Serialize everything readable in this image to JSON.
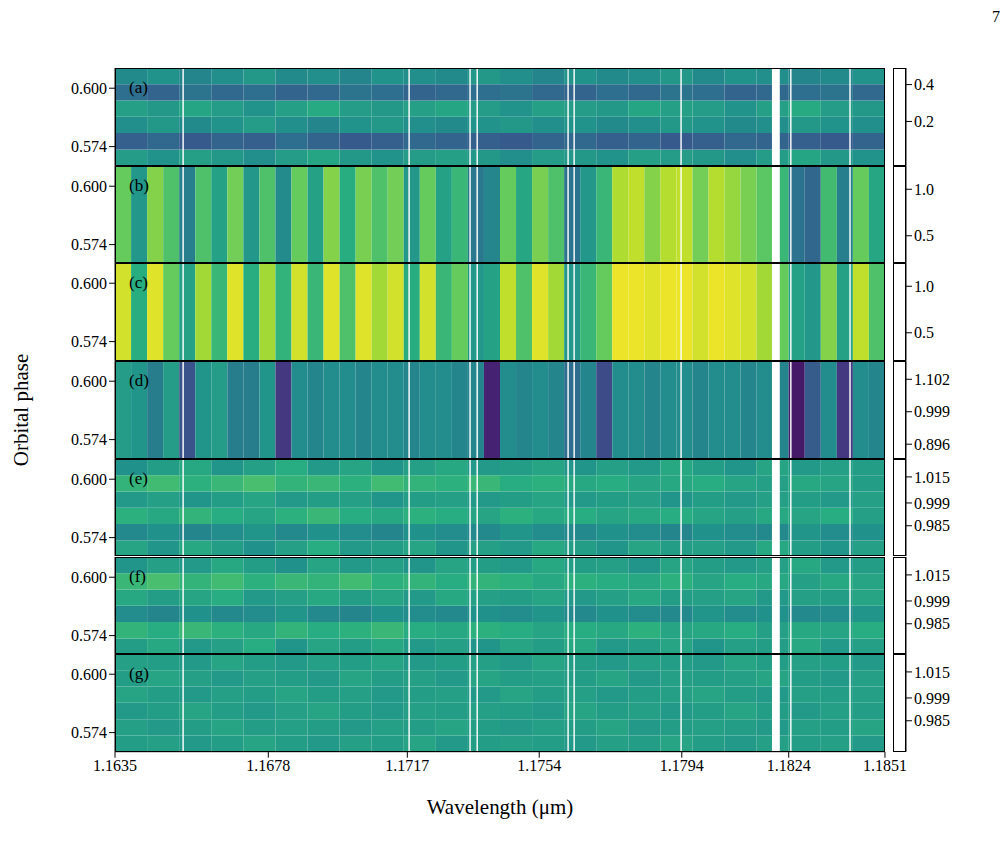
{
  "page_number": "7",
  "chart_data": {
    "type": "heatmap",
    "xlabel": "Wavelength (μm)",
    "ylabel": "Orbital phase",
    "xlim": [
      1.1635,
      1.1851
    ],
    "xticks": [
      1.1635,
      1.1678,
      1.1717,
      1.1754,
      1.1794,
      1.1824,
      1.1851
    ],
    "ylim": [
      0.5655,
      0.609
    ],
    "yticks": [
      0.574,
      {
        "value": 0.6,
        "label": "0.600"
      }
    ],
    "masked": [
      [
        1.16539,
        1.16543
      ],
      [
        1.17173,
        1.17177
      ],
      [
        1.17344,
        1.17348
      ],
      [
        1.17364,
        1.17368
      ],
      [
        1.17619,
        1.17623
      ],
      [
        1.17636,
        1.1764
      ],
      [
        1.17936,
        1.1794
      ],
      [
        1.18193,
        1.18215
      ],
      [
        1.18244,
        1.18248
      ],
      [
        1.1841,
        1.18414
      ]
    ],
    "panels": [
      {
        "label": "(a)",
        "colorbar_range": [
          -0.04,
          0.49
        ],
        "colorbar_ticks": [
          0.2,
          0.4
        ],
        "cells": [
          [
            0.25,
            0.23,
            0.26,
            0.24,
            0.22,
            0.25,
            0.27,
            0.24,
            0.23,
            0.25,
            0.26,
            0.24,
            0.22,
            0.25,
            0.24,
            0.23,
            0.26,
            0.25,
            0.24,
            0.22,
            0.25,
            0.27,
            0.24,
            0.23
          ],
          [
            0.12,
            0.14,
            0.11,
            0.13,
            0.12,
            0.15,
            0.13,
            0.11,
            0.12,
            0.14,
            0.13,
            0.12,
            0.11,
            0.13,
            0.14,
            0.12,
            0.13,
            0.11,
            0.12,
            0.14,
            0.13,
            0.12,
            0.11,
            0.13
          ],
          [
            0.22,
            0.24,
            0.21,
            0.23,
            0.25,
            0.22,
            0.2,
            0.23,
            0.24,
            0.22,
            0.21,
            0.23,
            0.24,
            0.22,
            0.23,
            0.21,
            0.22,
            0.24,
            0.23,
            0.21,
            0.22,
            0.24,
            0.23,
            0.22
          ],
          [
            0.26,
            0.24,
            0.27,
            0.25,
            0.23,
            0.26,
            0.28,
            0.25,
            0.24,
            0.26,
            0.27,
            0.25,
            0.23,
            0.26,
            0.25,
            0.24,
            0.27,
            0.26,
            0.25,
            0.23,
            0.26,
            0.28,
            0.25,
            0.24
          ],
          [
            0.15,
            0.13,
            0.16,
            0.14,
            0.15,
            0.13,
            0.14,
            0.16,
            0.15,
            0.13,
            0.14,
            0.15,
            0.16,
            0.14,
            0.13,
            0.15,
            0.14,
            0.16,
            0.15,
            0.13,
            0.14,
            0.15,
            0.16,
            0.14
          ],
          [
            0.21,
            0.23,
            0.2,
            0.22,
            0.24,
            0.21,
            0.22,
            0.2,
            0.23,
            0.22,
            0.21,
            0.24,
            0.22,
            0.2,
            0.23,
            0.21,
            0.22,
            0.24,
            0.21,
            0.23,
            0.22,
            0.2,
            0.21,
            0.23
          ]
        ]
      },
      {
        "label": "(b)",
        "colorbar_range": [
          0.2,
          1.25
        ],
        "colorbar_ticks": [
          0.5,
          {
            "value": 1,
            "label": "1.0"
          }
        ],
        "cells": [
          [
            1.0,
            0.75,
            1.05,
            0.95,
            0.65,
            0.95,
            0.8,
            1.02,
            0.75,
            0.95,
            0.7,
            1.0,
            0.8,
            1.05,
            0.85,
            1.03,
            0.95,
            1.02,
            0.75,
            1.0,
            0.8,
            0.9,
            0.62,
            0.68,
            1.0,
            0.82,
            1.03,
            0.95,
            0.6,
            0.75,
            0.9,
            1.12,
            1.15,
            1.05,
            1.13,
            1.15,
            1.02,
            1.13,
            1.08,
            1.03,
            0.98,
            0.9,
            0.6,
            0.55,
            0.92,
            0.65,
            1.0,
            0.82
          ]
        ]
      },
      {
        "label": "(c)",
        "colorbar_range": [
          0.2,
          1.25
        ],
        "colorbar_ticks": [
          0.5,
          {
            "value": 1,
            "label": "1.0"
          }
        ],
        "cells": [
          [
            1.18,
            0.85,
            1.2,
            1.0,
            0.8,
            1.1,
            0.9,
            1.2,
            0.85,
            1.1,
            0.88,
            1.18,
            0.9,
            1.2,
            0.95,
            1.2,
            1.1,
            1.18,
            0.85,
            1.18,
            0.9,
            1.0,
            0.75,
            0.8,
            1.15,
            0.95,
            1.2,
            1.1,
            0.75,
            0.9,
            1.0,
            1.22,
            1.22,
            1.2,
            1.22,
            1.22,
            1.18,
            1.22,
            1.2,
            1.18,
            1.1,
            1.0,
            0.8,
            0.75,
            1.05,
            0.8,
            1.15,
            0.95
          ]
        ]
      },
      {
        "label": "(d)",
        "colorbar_range": [
          0.85,
          1.16
        ],
        "colorbar_ticks": [
          0.896,
          0.999,
          1.102
        ],
        "cells": [
          [
            1.02,
            1.01,
            0.98,
            1.02,
            0.93,
            1.01,
            1.02,
            0.98,
            0.98,
            1.01,
            0.9,
            1.0,
            0.99,
            1.0,
            1.0,
            0.99,
            1.0,
            1.0,
            0.99,
            1.0,
            1.0,
            0.99,
            0.99,
            0.88,
            1.0,
            0.99,
            1.0,
            0.99,
            0.96,
            0.99,
            0.92,
            1.0,
            1.0,
            0.99,
            1.0,
            1.0,
            0.99,
            1.0,
            1.0,
            0.99,
            1.0,
            0.99,
            0.87,
            0.94,
            1.0,
            0.9,
            1.0,
            0.99
          ]
        ]
      },
      {
        "label": "(e)",
        "colorbar_range": [
          0.966,
          1.026
        ],
        "colorbar_ticks": [
          0.985,
          0.999,
          1.015
        ],
        "cells": [
          [
            1.001,
            0.997,
            1.002,
            0.999,
            0.996,
            1.0,
            1.003,
            0.998,
            0.999,
            1.001,
            0.997,
            1.0,
            0.998,
            1.002,
            0.999,
            0.997,
            1.001,
            0.999,
            1.0,
            0.998,
            1.002,
            0.999,
            0.997,
            1.0
          ],
          [
            0.994,
            0.996,
            0.993,
            0.995,
            0.997,
            0.994,
            0.996,
            0.995,
            0.993,
            0.996,
            0.995,
            0.994,
            0.997,
            0.995,
            0.994,
            0.996,
            0.995,
            0.993,
            0.996,
            0.995,
            0.994,
            0.997,
            0.995,
            0.996
          ],
          [
            1.004,
            1.002,
            1.005,
            1.003,
            1.001,
            1.004,
            1.006,
            1.003,
            1.002,
            1.004,
            1.003,
            1.001,
            1.004,
            1.002,
            1.003,
            1.001,
            1.002,
            1.003,
            1.001,
            1.0,
            1.002,
            1.001,
            1.003,
            1.0
          ],
          [
            0.998,
            1.0,
            0.997,
            0.999,
            1.001,
            0.998,
            0.999,
            1.0,
            0.997,
            0.999,
            1.0,
            0.998,
            0.999,
            1.001,
            0.998,
            0.999,
            1.0,
            0.997,
            0.999,
            0.998,
            1.0,
            0.999,
            0.998,
            1.0
          ],
          [
            1.005,
            1.007,
            1.004,
            1.006,
            1.008,
            1.005,
            1.006,
            1.004,
            1.007,
            1.005,
            1.004,
            1.006,
            1.003,
            1.004,
            1.002,
            1.003,
            1.001,
            1.002,
            1.003,
            1.001,
            1.0,
            1.002,
            1.001,
            0.999
          ],
          [
            0.996,
            0.999,
            1.002,
            0.997,
            1.0,
            1.003,
            0.998,
            1.001,
            0.997,
            1.0,
            1.002,
            0.998,
            0.999,
            1.001,
            0.997,
            1.0,
            0.998,
            1.002,
            0.999,
            0.997,
            1.001,
            0.998,
            1.0,
            0.999
          ]
        ]
      },
      {
        "label": "(f)",
        "colorbar_range": [
          0.966,
          1.026
        ],
        "colorbar_ticks": [
          0.985,
          0.999,
          1.015
        ],
        "cells": [
          [
            0.999,
            1.002,
            0.998,
            1.0,
            1.003,
            0.997,
            1.001,
            0.999,
            1.002,
            0.998,
            1.0,
            0.997,
            1.001,
            0.999,
            1.002,
            0.998,
            0.999,
            1.001,
            0.997,
            1.0,
            0.999,
            1.002,
            0.998,
            1.0
          ],
          [
            1.005,
            1.003,
            1.006,
            1.004,
            1.002,
            1.005,
            1.003,
            1.004,
            1.006,
            1.003,
            1.002,
            1.004,
            1.003,
            1.001,
            1.003,
            1.002,
            1.004,
            1.001,
            1.002,
            1.003,
            1.0,
            1.002,
            1.001,
            1.003
          ],
          [
            0.995,
            0.993,
            0.996,
            0.994,
            0.995,
            0.997,
            0.994,
            0.993,
            0.996,
            0.995,
            0.994,
            0.996,
            0.995,
            0.997,
            0.994,
            0.996,
            0.995,
            0.994,
            0.997,
            0.995,
            0.996,
            0.994,
            0.995,
            0.997
          ],
          [
            1.002,
            0.999,
            1.001,
            1.003,
            0.998,
            1.0,
            1.002,
            0.999,
            1.001,
            0.998,
            1.002,
            1.0,
            0.999,
            1.001,
            0.998,
            1.0,
            1.002,
            0.999,
            1.0,
            1.001,
            0.998,
            1.0,
            0.999,
            1.001
          ],
          [
            1.006,
            1.008,
            1.005,
            1.007,
            1.004,
            1.006,
            1.005,
            1.007,
            1.004,
            1.005,
            1.003,
            1.005,
            1.004,
            1.002,
            1.004,
            1.003,
            1.002,
            1.004,
            1.001,
            1.003,
            1.002,
            1.0,
            1.002,
            1.001
          ],
          [
            0.997,
            1.0,
            0.998,
            1.002,
            0.999,
            0.996,
            1.001,
            0.998,
            1.0,
            0.997,
            1.001,
            0.999,
            0.998,
            1.002,
            0.999,
            1.0,
            0.997,
            1.001,
            0.999,
            0.998,
            1.0,
            1.002,
            0.998,
            0.999
          ]
        ]
      },
      {
        "label": "(g)",
        "colorbar_range": [
          0.966,
          1.026
        ],
        "colorbar_ticks": [
          0.985,
          0.999,
          1.015
        ],
        "cells": [
          [
            0.999,
            1.0,
            0.998,
            0.999,
            1.001,
            0.999,
            0.998,
            1.0,
            0.999,
            1.001,
            0.998,
            0.999,
            1.0,
            0.999,
            0.998,
            1.0,
            0.999,
            1.001,
            0.999,
            0.998,
            1.0,
            0.999,
            1.0,
            0.998
          ],
          [
            1.0,
            0.998,
            0.999,
            1.001,
            0.999,
            1.0,
            0.999,
            0.998,
            1.0,
            0.999,
            1.001,
            0.999,
            0.998,
            1.0,
            0.999,
            1.001,
            0.998,
            0.999,
            1.0,
            0.999,
            0.998,
            1.0,
            0.999,
            1.001
          ],
          [
            0.998,
            0.999,
            1.001,
            0.999,
            0.998,
            1.0,
            1.001,
            0.999,
            0.998,
            1.0,
            0.999,
            1.0,
            0.999,
            0.998,
            1.001,
            0.999,
            1.0,
            0.998,
            0.999,
            1.001,
            0.999,
            0.998,
            1.0,
            0.999
          ],
          [
            1.001,
            0.999,
            0.998,
            1.0,
            0.999,
            1.001,
            0.999,
            1.0,
            0.998,
            0.999,
            1.0,
            0.998,
            1.001,
            0.999,
            1.0,
            0.998,
            0.999,
            1.0,
            1.001,
            0.999,
            0.998,
            1.0,
            0.999,
            1.0
          ],
          [
            0.999,
            1.001,
            1.0,
            0.998,
            1.0,
            0.999,
            0.998,
            1.001,
            0.999,
            1.0,
            0.998,
            1.001,
            0.999,
            1.0,
            0.999,
            1.001,
            0.998,
            1.0,
            0.999,
            1.0,
            1.001,
            0.999,
            0.998,
            1.0
          ],
          [
            1.0,
            0.999,
            0.998,
            1.001,
            0.999,
            0.998,
            1.0,
            0.999,
            1.001,
            0.998,
            0.999,
            1.0,
            0.998,
            1.001,
            0.999,
            0.998,
            1.0,
            0.999,
            0.998,
            1.001,
            0.999,
            1.0,
            0.999,
            0.998
          ]
        ]
      }
    ]
  }
}
